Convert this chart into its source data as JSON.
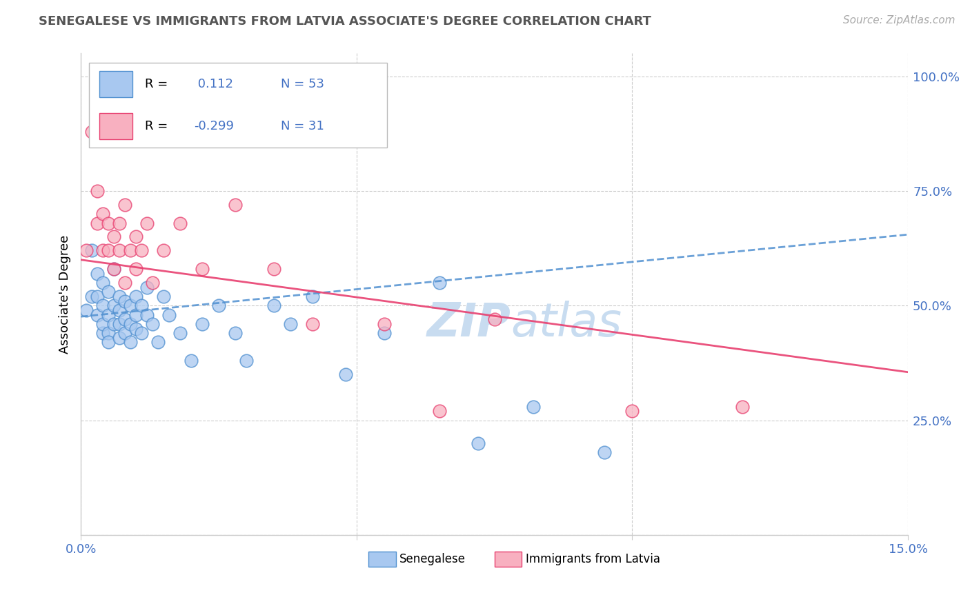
{
  "title": "SENEGALESE VS IMMIGRANTS FROM LATVIA ASSOCIATE'S DEGREE CORRELATION CHART",
  "source": "Source: ZipAtlas.com",
  "ylabel": "Associate's Degree",
  "x_min": 0.0,
  "x_max": 0.15,
  "y_min": 0.0,
  "y_max": 1.05,
  "legend_label1": "Senegalese",
  "legend_label2": "Immigrants from Latvia",
  "R1": 0.112,
  "N1": 53,
  "R2": -0.299,
  "N2": 31,
  "blue_color": "#A8C8F0",
  "pink_color": "#F8B0C0",
  "trend_blue": "#5090D0",
  "trend_pink": "#E84070",
  "watermark_color": "#C8DCF0",
  "blue_points_x": [
    0.001,
    0.002,
    0.002,
    0.003,
    0.003,
    0.003,
    0.004,
    0.004,
    0.004,
    0.004,
    0.005,
    0.005,
    0.005,
    0.005,
    0.006,
    0.006,
    0.006,
    0.007,
    0.007,
    0.007,
    0.007,
    0.008,
    0.008,
    0.008,
    0.009,
    0.009,
    0.009,
    0.01,
    0.01,
    0.01,
    0.011,
    0.011,
    0.012,
    0.012,
    0.013,
    0.014,
    0.015,
    0.016,
    0.018,
    0.02,
    0.022,
    0.025,
    0.028,
    0.03,
    0.035,
    0.038,
    0.042,
    0.048,
    0.055,
    0.065,
    0.072,
    0.082,
    0.095
  ],
  "blue_points_y": [
    0.49,
    0.62,
    0.52,
    0.48,
    0.52,
    0.57,
    0.5,
    0.44,
    0.46,
    0.55,
    0.48,
    0.53,
    0.44,
    0.42,
    0.5,
    0.46,
    0.58,
    0.49,
    0.43,
    0.52,
    0.46,
    0.51,
    0.47,
    0.44,
    0.5,
    0.46,
    0.42,
    0.48,
    0.52,
    0.45,
    0.5,
    0.44,
    0.48,
    0.54,
    0.46,
    0.42,
    0.52,
    0.48,
    0.44,
    0.38,
    0.46,
    0.5,
    0.44,
    0.38,
    0.5,
    0.46,
    0.52,
    0.35,
    0.44,
    0.55,
    0.2,
    0.28,
    0.18
  ],
  "pink_points_x": [
    0.001,
    0.002,
    0.003,
    0.003,
    0.004,
    0.004,
    0.005,
    0.005,
    0.006,
    0.006,
    0.007,
    0.007,
    0.008,
    0.008,
    0.009,
    0.01,
    0.01,
    0.011,
    0.012,
    0.013,
    0.015,
    0.018,
    0.022,
    0.028,
    0.035,
    0.042,
    0.055,
    0.065,
    0.075,
    0.1,
    0.12
  ],
  "pink_points_y": [
    0.62,
    0.88,
    0.68,
    0.75,
    0.62,
    0.7,
    0.62,
    0.68,
    0.58,
    0.65,
    0.62,
    0.68,
    0.55,
    0.72,
    0.62,
    0.58,
    0.65,
    0.62,
    0.68,
    0.55,
    0.62,
    0.68,
    0.58,
    0.72,
    0.58,
    0.46,
    0.46,
    0.27,
    0.47,
    0.27,
    0.28
  ],
  "blue_line_y0": 0.476,
  "blue_line_y1": 0.655,
  "pink_line_y0": 0.6,
  "pink_line_y1": 0.355
}
